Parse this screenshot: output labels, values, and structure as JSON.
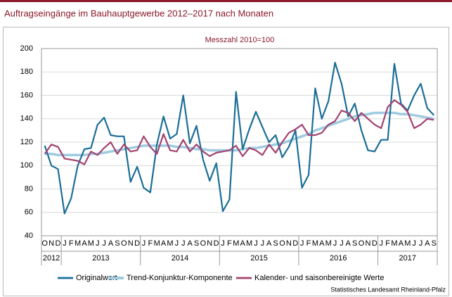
{
  "chart_data": {
    "type": "line",
    "title": "Auftragseingänge im Bauhauptgewerbe 2012–2017 nach Monaten",
    "subtitle": "Messzahl 2010=100",
    "source": "Statistisches Landesamt Rheinland-Pfalz",
    "years": [
      "2012",
      "2013",
      "2014",
      "2015",
      "2016",
      "2017"
    ],
    "categories": [
      "O",
      "N",
      "D",
      "J",
      "F",
      "M",
      "A",
      "M",
      "J",
      "J",
      "A",
      "S",
      "O",
      "N",
      "D",
      "J",
      "F",
      "M",
      "A",
      "M",
      "J",
      "J",
      "A",
      "S",
      "O",
      "N",
      "D",
      "J",
      "F",
      "M",
      "A",
      "M",
      "J",
      "J",
      "A",
      "S",
      "O",
      "N",
      "D",
      "J",
      "F",
      "M",
      "A",
      "M",
      "J",
      "J",
      "A",
      "S",
      "O",
      "N",
      "D",
      "J",
      "F",
      "M",
      "A",
      "M",
      "J",
      "J",
      "A",
      "S"
    ],
    "ylim": [
      40,
      200
    ],
    "yticks": [
      40,
      60,
      80,
      100,
      120,
      140,
      160,
      180,
      200
    ],
    "grid": true,
    "series": [
      {
        "name": "Originalwert",
        "color": "#1b6e97",
        "width": 2.2,
        "values": [
          117,
          100,
          97,
          59,
          72,
          100,
          114,
          115,
          135,
          141,
          126,
          125,
          125,
          86,
          99,
          81,
          77,
          118,
          142,
          123,
          127,
          160,
          119,
          134,
          105,
          87,
          102,
          61,
          71,
          163,
          114,
          131,
          146,
          133,
          120,
          126,
          107,
          116,
          130,
          81,
          92,
          166,
          140,
          155,
          188,
          170,
          142,
          153,
          130,
          113,
          112,
          122,
          122,
          187,
          153,
          147,
          160,
          170,
          149,
          143
        ]
      },
      {
        "name": "Trend-Konjunktur-Komponente",
        "color": "#9fcbe0",
        "width": 3.5,
        "values": [
          110,
          110,
          109,
          109,
          109,
          109,
          109,
          110,
          110,
          111,
          112,
          113,
          114,
          115,
          116,
          117,
          117,
          117,
          117,
          117,
          116,
          116,
          115,
          114,
          114,
          113,
          113,
          113,
          113,
          113,
          114,
          115,
          115,
          116,
          117,
          118,
          119,
          121,
          123,
          125,
          127,
          130,
          132,
          134,
          136,
          138,
          140,
          142,
          143,
          144,
          145,
          145,
          145,
          145,
          144,
          144,
          143,
          142,
          141,
          140
        ]
      },
      {
        "name": "Kalender- und saisonbereinigte Werte",
        "color": "#a2426f",
        "width": 2.2,
        "values": [
          110,
          118,
          116,
          106,
          105,
          104,
          101,
          112,
          109,
          115,
          120,
          110,
          118,
          112,
          113,
          125,
          116,
          110,
          127,
          113,
          112,
          122,
          112,
          118,
          112,
          108,
          111,
          112,
          113,
          117,
          108,
          115,
          113,
          109,
          118,
          111,
          120,
          128,
          131,
          135,
          126,
          126,
          128,
          135,
          138,
          147,
          145,
          138,
          145,
          140,
          135,
          132,
          150,
          156,
          152,
          146,
          132,
          135,
          140,
          139
        ]
      }
    ]
  }
}
